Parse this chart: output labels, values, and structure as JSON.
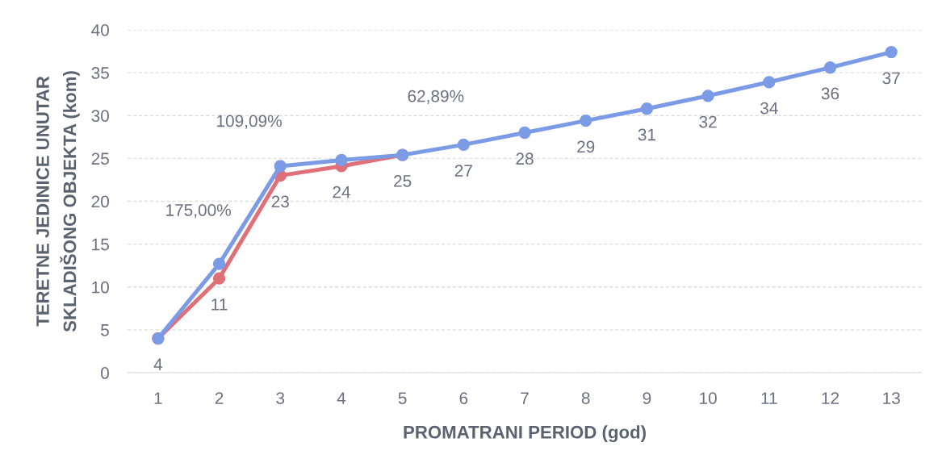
{
  "chart_data": {
    "type": "line",
    "xlabel": "PROMATRANI PERIOD (god)",
    "ylabel": "TERETNE JEDINICE UNUTAR\nSKLADIŠONG OBJEKTA (kom)",
    "x": [
      1,
      2,
      3,
      4,
      5,
      6,
      7,
      8,
      9,
      10,
      11,
      12,
      13
    ],
    "xlim": [
      0.5,
      13.5
    ],
    "xticks": [
      1,
      2,
      3,
      4,
      5,
      6,
      7,
      8,
      9,
      10,
      11,
      12,
      13
    ],
    "ylim": [
      0,
      40
    ],
    "yticks": [
      0,
      5,
      10,
      15,
      20,
      25,
      30,
      35,
      40
    ],
    "grid": "y",
    "marker": "circle",
    "line_style": "solid",
    "series": [
      {
        "color": "#e07078",
        "values": [
          4,
          11,
          23,
          24.1,
          25.4,
          null,
          null,
          null,
          null,
          null,
          null,
          null,
          null
        ],
        "value_labels": [
          "4",
          "11",
          "23",
          "24",
          "25",
          null,
          null,
          null,
          null,
          null,
          null,
          null,
          null
        ]
      },
      {
        "color": "#7b9be6",
        "values": [
          4,
          12.7,
          24.1,
          24.8,
          25.4,
          26.6,
          28,
          29.4,
          30.8,
          32.3,
          33.9,
          35.6,
          37.4
        ],
        "value_labels": [
          null,
          null,
          null,
          null,
          null,
          "27",
          "28",
          "29",
          "31",
          "32",
          "34",
          "36",
          "37"
        ]
      }
    ],
    "annotations": [
      "175,00%",
      "109,09%",
      "62,89%"
    ]
  }
}
